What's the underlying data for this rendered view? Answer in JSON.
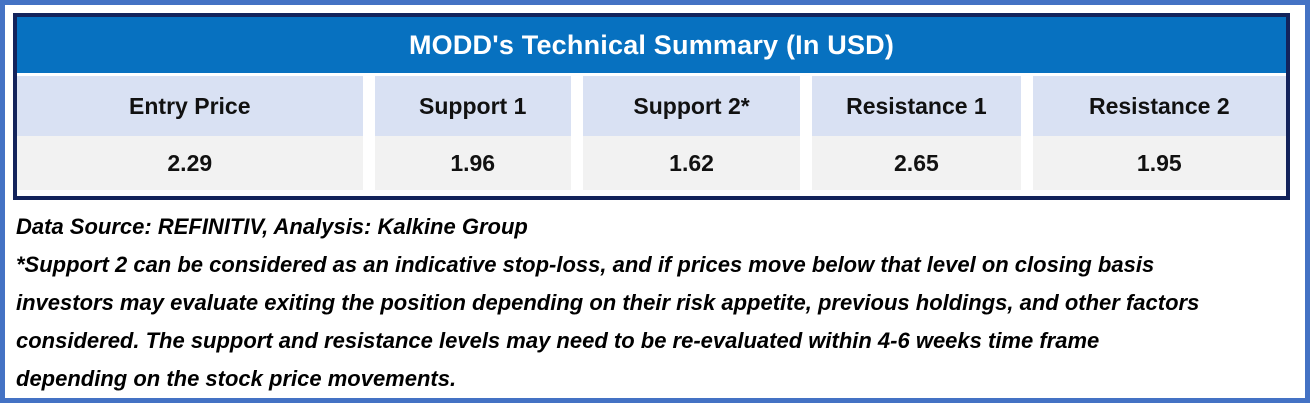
{
  "table": {
    "title": "MODD's Technical Summary (In USD)",
    "columns": [
      {
        "label": "Entry Price",
        "value": "2.29"
      },
      {
        "label": "Support 1",
        "value": "1.96"
      },
      {
        "label": "Support 2*",
        "value": "1.62"
      },
      {
        "label": "Resistance 1",
        "value": "2.65"
      },
      {
        "label": "Resistance 2",
        "value": "1.95"
      }
    ]
  },
  "footer": {
    "source_line": "Data Source: REFINITIV, Analysis: Kalkine Group",
    "disclaimer": "*Support 2 can be considered as an indicative stop-loss, and if prices move below that level on closing basis investors may evaluate exiting the position depending on their risk appetite, previous holdings, and other factors considered. The support and resistance levels may need to be re-evaluated within 4-6 weeks time frame depending on the stock price movements."
  },
  "colors": {
    "frame_border": "#4472C4",
    "table_border": "#13235B",
    "title_bar": "#0771C0",
    "header_row": "#D9E1F3",
    "value_row": "#F2F2F2"
  }
}
